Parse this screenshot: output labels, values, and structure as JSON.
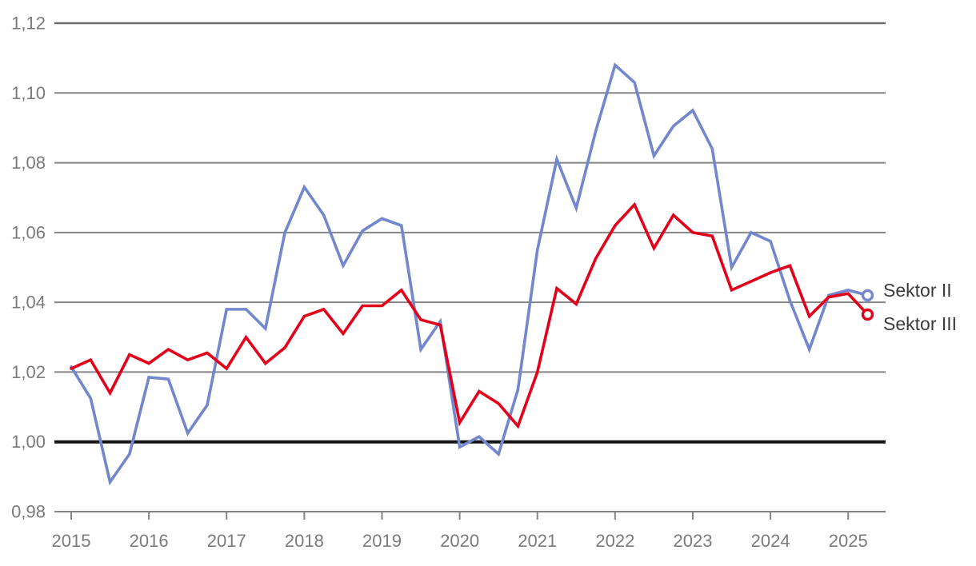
{
  "chart_data": {
    "type": "line",
    "title": "",
    "x_axis": {
      "tick_labels": [
        "2015",
        "2016",
        "2017",
        "2018",
        "2019",
        "2020",
        "2021",
        "2022",
        "2023",
        "2024",
        "2025"
      ],
      "unit": "year",
      "minor_step": "quarter"
    },
    "y_axis": {
      "ticks": [
        {
          "label": "0,98",
          "value": 0.98
        },
        {
          "label": "1,00",
          "value": 1.0
        },
        {
          "label": "1,02",
          "value": 1.02
        },
        {
          "label": "1,04",
          "value": 1.04
        },
        {
          "label": "1,06",
          "value": 1.06
        },
        {
          "label": "1,08",
          "value": 1.08
        },
        {
          "label": "1,10",
          "value": 1.1
        },
        {
          "label": "1,12",
          "value": 1.12
        }
      ],
      "ylim": [
        0.98,
        1.12
      ],
      "decimal_separator": ","
    },
    "reference_line": {
      "value": 1.0,
      "label": "1,00"
    },
    "grid": true,
    "categories": [
      "2015-Q1",
      "2015-Q2",
      "2015-Q3",
      "2015-Q4",
      "2016-Q1",
      "2016-Q2",
      "2016-Q3",
      "2016-Q4",
      "2017-Q1",
      "2017-Q2",
      "2017-Q3",
      "2017-Q4",
      "2018-Q1",
      "2018-Q2",
      "2018-Q3",
      "2018-Q4",
      "2019-Q1",
      "2019-Q2",
      "2019-Q3",
      "2019-Q4",
      "2020-Q1",
      "2020-Q2",
      "2020-Q3",
      "2020-Q4",
      "2021-Q1",
      "2021-Q2",
      "2021-Q3",
      "2021-Q4",
      "2022-Q1",
      "2022-Q2",
      "2022-Q3",
      "2022-Q4",
      "2023-Q1",
      "2023-Q2",
      "2023-Q3",
      "2023-Q4",
      "2024-Q1",
      "2024-Q2",
      "2024-Q3",
      "2024-Q4",
      "2025-Q1",
      "2025-Q2"
    ],
    "series": [
      {
        "name": "Sektor II",
        "color": "#7287CD",
        "end_marker": "open-circle",
        "values": [
          1.0215,
          1.0125,
          0.9885,
          0.9965,
          1.0185,
          1.018,
          1.0025,
          1.0105,
          1.038,
          1.038,
          1.0325,
          1.06,
          1.073,
          1.065,
          1.0505,
          1.0605,
          1.064,
          1.062,
          1.0265,
          1.0345,
          0.9985,
          1.0015,
          0.9965,
          1.015,
          1.055,
          1.081,
          1.067,
          1.089,
          1.108,
          1.103,
          1.082,
          1.0905,
          1.095,
          1.084,
          1.05,
          1.06,
          1.0575,
          1.0405,
          1.0265,
          1.042,
          1.0435,
          1.042
        ]
      },
      {
        "name": "Sektor III",
        "color": "#E2001A",
        "end_marker": "open-circle",
        "values": [
          1.021,
          1.0235,
          1.014,
          1.025,
          1.0225,
          1.0265,
          1.0235,
          1.0255,
          1.021,
          1.03,
          1.0225,
          1.027,
          1.036,
          1.038,
          1.031,
          1.039,
          1.039,
          1.0435,
          1.035,
          1.0335,
          1.0055,
          1.0145,
          1.011,
          1.0045,
          1.02,
          1.044,
          1.0395,
          1.0525,
          1.062,
          1.068,
          1.0555,
          1.065,
          1.06,
          1.059,
          1.0435,
          1.046,
          1.0485,
          1.0505,
          1.036,
          1.0415,
          1.0425,
          1.0365
        ]
      }
    ],
    "legend": {
      "position": "right-end-of-lines",
      "entries": [
        "Sektor II",
        "Sektor III"
      ]
    }
  },
  "colors": {
    "background": "#ffffff",
    "gridline": "#858585",
    "top_gridline": "#6f6f6f",
    "axis_line": "#858585",
    "reference_line": "#141414",
    "tick_label": "#7b7b7b",
    "legend_text": "#3c3c3c",
    "marker_fill": "#ffffff"
  }
}
